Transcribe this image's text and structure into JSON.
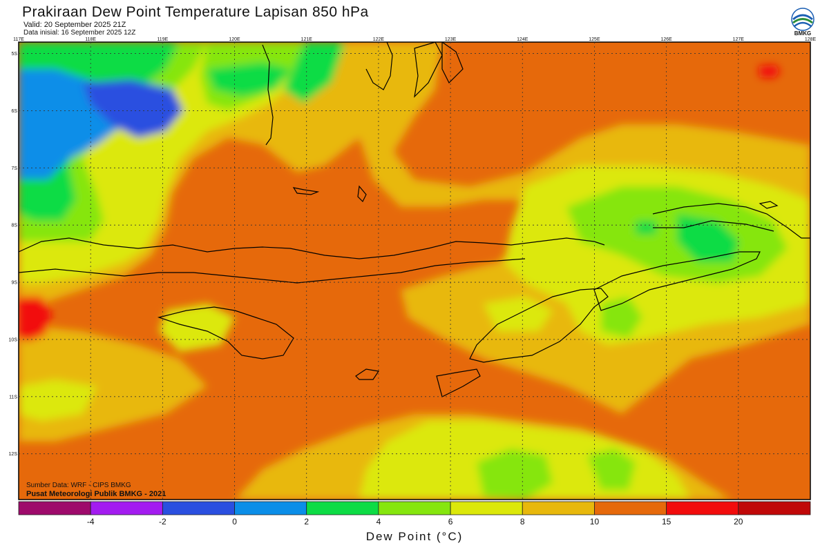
{
  "header": {
    "title": "Prakiraan Dew Point Temperature Lapisan 850 hPa",
    "valid": "Valid: 20 September 2025 21Z",
    "initial": "Data inisial: 16 September 2025 12Z"
  },
  "logo": {
    "text": "BMKG",
    "icon": "bmkg-logo-icon"
  },
  "map": {
    "lon_labels": [
      "117E",
      "118E",
      "119E",
      "120E",
      "121E",
      "122E",
      "123E",
      "124E",
      "125E",
      "126E",
      "127E",
      "128E"
    ],
    "lat_labels": [
      "5S",
      "6S",
      "7S",
      "8S",
      "9S",
      "10S",
      "11S",
      "12S"
    ],
    "lon_range": [
      117,
      128
    ],
    "lat_range": [
      -4.8,
      -12.8
    ],
    "grid": true,
    "colors": {
      "lt_neg4": "#9e0a6b",
      "neg4_neg2": "#a31cf0",
      "neg2_0": "#2a4fe0",
      "0_2": "#0b8ee8",
      "2_4": "#0ddc45",
      "4_6": "#86e60e",
      "6_8": "#dce80a",
      "8_10": "#e8b80c",
      "10_15": "#e6690b",
      "15_20": "#f20c0c",
      "gt_20": "#c00808"
    }
  },
  "footer": {
    "source": "Sumber Data: WRF - CIPS BMKG",
    "center": "Pusat Meteorologi Publik BMKG - 2021"
  },
  "colorbar": {
    "labels": [
      "-4",
      "-2",
      "0",
      "2",
      "4",
      "6",
      "8",
      "10",
      "15",
      "20"
    ],
    "colors": [
      "#9e0a6b",
      "#a31cf0",
      "#2a4fe0",
      "#0b8ee8",
      "#0ddc45",
      "#86e60e",
      "#dce80a",
      "#e8b80c",
      "#e6690b",
      "#f20c0c",
      "#c00808"
    ],
    "unit_label": "Dew Point (°C)"
  }
}
